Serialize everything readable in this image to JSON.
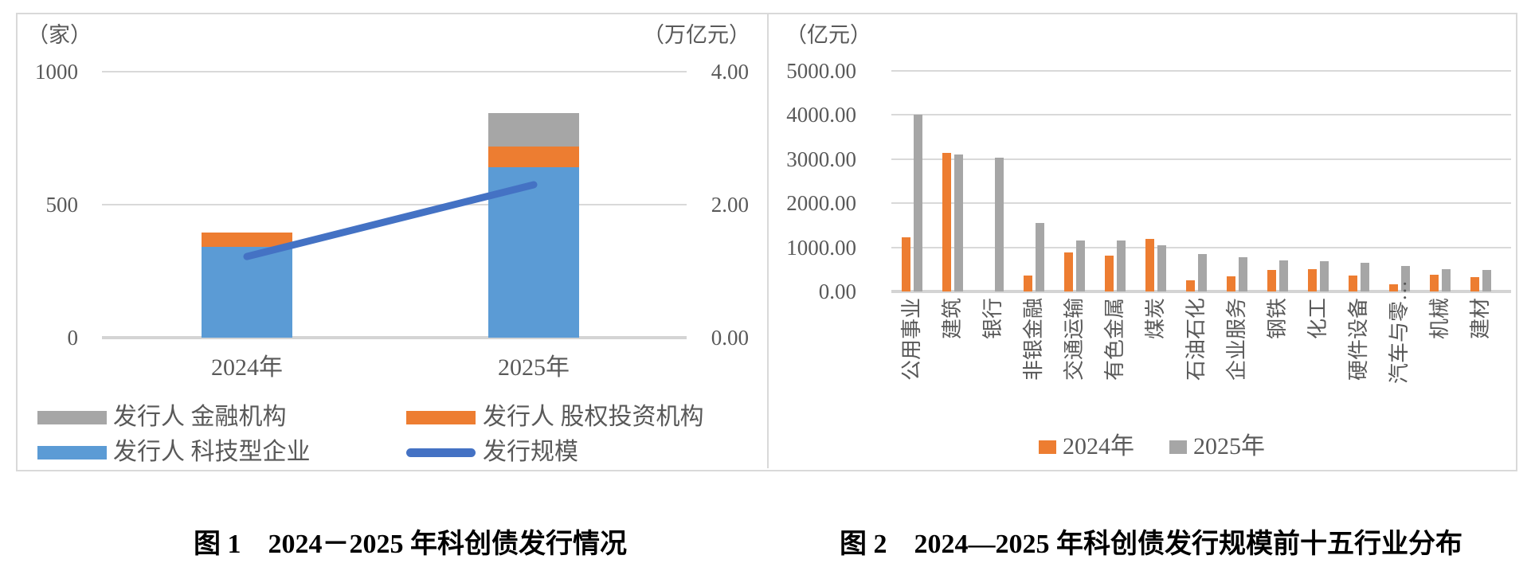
{
  "figure": {
    "captions": {
      "fig1": "图 1　2024－2025 年科创债发行情况",
      "fig2": "图 2　2024—2025 年科创债发行规模前十五行业分布"
    }
  },
  "colors": {
    "orange": "#ED7D31",
    "gray": "#A6A6A6",
    "blue": "#5B9BD5",
    "line_blue": "#4472C4",
    "grid": "#D9D9D9",
    "axis_text": "#595959"
  },
  "chart_data": [
    {
      "type": "combo-stacked-bar-line",
      "left_axis": {
        "unit_label": "（家）",
        "ticks": [
          0,
          500,
          1000
        ],
        "range": [
          0,
          1000
        ]
      },
      "right_axis": {
        "unit_label": "（万亿元）",
        "ticks": [
          "0.00",
          "2.00",
          "4.00"
        ],
        "tick_values": [
          0,
          2,
          4
        ],
        "range": [
          0,
          4
        ]
      },
      "categories": [
        "2024年",
        "2025年"
      ],
      "series": [
        {
          "name": "发行人 科技型企业",
          "type": "bar",
          "color_key": "blue",
          "values": [
            340,
            640
          ]
        },
        {
          "name": "发行人 股权投资机构",
          "type": "bar",
          "color_key": "orange",
          "values": [
            55,
            80
          ]
        },
        {
          "name": "发行人 金融机构",
          "type": "bar",
          "color_key": "gray",
          "values": [
            0,
            125
          ]
        },
        {
          "name": "发行规模",
          "type": "line",
          "axis": "right",
          "color_key": "line_blue",
          "values": [
            1.22,
            2.3
          ]
        }
      ],
      "legend": [
        {
          "swatch": "gray",
          "swatch_type": "rect",
          "label": "发行人 金融机构"
        },
        {
          "swatch": "orange",
          "swatch_type": "rect",
          "label": "发行人 股权投资机构"
        },
        {
          "swatch": "blue",
          "swatch_type": "rect",
          "label": "发行人 科技型企业"
        },
        {
          "swatch": "line_blue",
          "swatch_type": "line",
          "label": "发行规模"
        }
      ],
      "grid": true,
      "legend_position": "bottom"
    },
    {
      "type": "bar",
      "axis": {
        "unit_label": "（亿元）",
        "ticks": [
          "0.00",
          "1000.00",
          "2000.00",
          "3000.00",
          "4000.00",
          "5000.00"
        ],
        "tick_values": [
          0,
          1000,
          2000,
          3000,
          4000,
          5000
        ],
        "range": [
          0,
          5000
        ]
      },
      "categories": [
        "公用事业",
        "建筑",
        "银行",
        "非银金融",
        "交通运输",
        "有色金属",
        "煤炭",
        "石油石化",
        "企业服务",
        "钢铁",
        "化工",
        "硬件设备",
        "汽车与零…",
        "机械",
        "建材"
      ],
      "series": [
        {
          "name": "2024年",
          "color_key": "orange",
          "values": [
            1220,
            3140,
            0,
            360,
            880,
            810,
            1200,
            250,
            340,
            480,
            500,
            355,
            160,
            380,
            320
          ]
        },
        {
          "name": "2025年",
          "color_key": "gray",
          "values": [
            4000,
            3110,
            3030,
            1560,
            1160,
            1150,
            1040,
            850,
            770,
            710,
            680,
            645,
            570,
            500,
            480
          ]
        }
      ],
      "legend": [
        {
          "swatch": "orange",
          "label": "2024年"
        },
        {
          "swatch": "gray",
          "label": "2025年"
        }
      ],
      "grid": true,
      "legend_position": "bottom"
    }
  ]
}
